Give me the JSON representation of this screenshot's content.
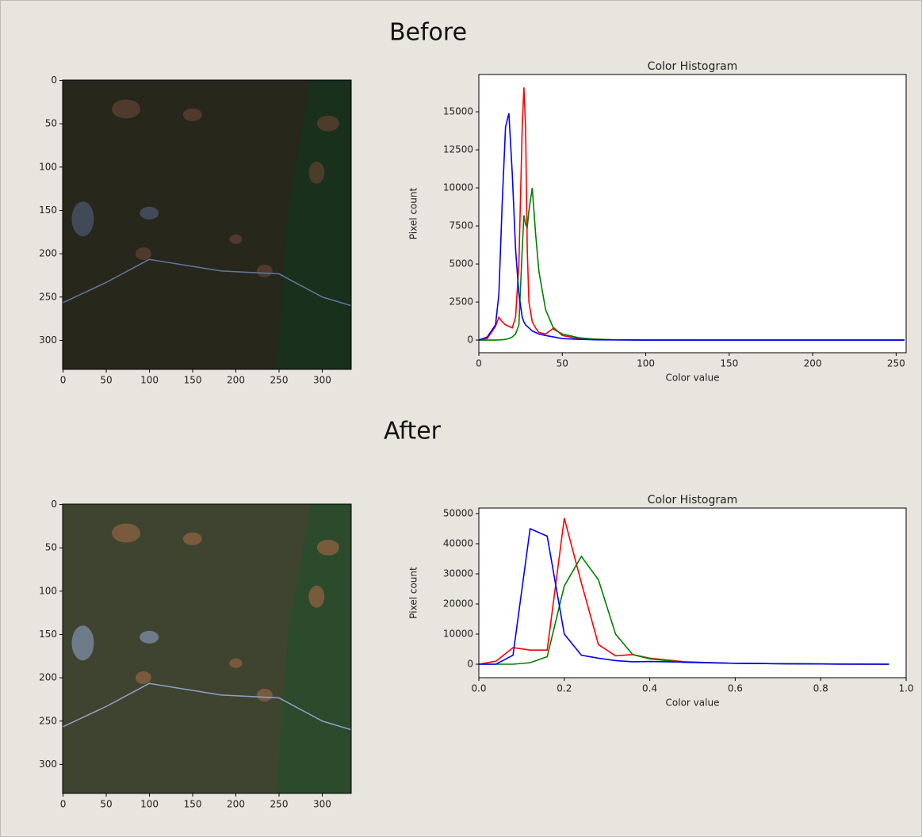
{
  "headings": [
    "Before",
    "After"
  ],
  "chart_data": [
    {
      "type": "image",
      "xlim": [
        -0.5,
        333.5
      ],
      "ylim": [
        333.5,
        -0.5
      ],
      "xticks": [
        0,
        50,
        100,
        150,
        200,
        250,
        300
      ],
      "yticks": [
        0,
        50,
        100,
        150,
        200,
        250,
        300
      ]
    },
    {
      "type": "line",
      "title": "Color Histogram",
      "x_label": "Color value",
      "y_label": "Pixel count",
      "x": [
        0,
        5,
        10,
        12,
        14,
        16,
        18,
        20,
        22,
        24,
        26,
        27,
        28,
        29,
        30,
        32,
        34,
        36,
        40,
        45,
        50,
        60,
        70,
        80,
        100,
        150,
        200,
        255
      ],
      "series": [
        {
          "color": "#ff0000",
          "values": [
            0,
            100,
            900,
            1500,
            1200,
            1000,
            900,
            800,
            1500,
            5000,
            14000,
            16600,
            14000,
            6000,
            2500,
            1200,
            800,
            500,
            400,
            800,
            300,
            100,
            50,
            20,
            0,
            0,
            0,
            0
          ]
        },
        {
          "color": "#008000",
          "values": [
            0,
            0,
            0,
            10,
            20,
            50,
            100,
            200,
            400,
            1000,
            6000,
            8200,
            7600,
            7400,
            8500,
            10000,
            7000,
            4500,
            2000,
            700,
            400,
            150,
            60,
            20,
            5,
            0,
            0,
            0
          ]
        },
        {
          "color": "#0000ff",
          "values": [
            0,
            200,
            1000,
            3000,
            9000,
            14000,
            14900,
            11000,
            6000,
            3000,
            1500,
            1200,
            1000,
            900,
            800,
            600,
            500,
            400,
            300,
            200,
            100,
            50,
            20,
            10,
            0,
            0,
            0,
            0
          ]
        }
      ],
      "xlim": [
        0,
        256
      ],
      "ylim": [
        -830,
        17450
      ],
      "xticks": [
        0,
        50,
        100,
        150,
        200,
        250
      ],
      "yticks": [
        0,
        2500,
        5000,
        7500,
        10000,
        12500,
        15000
      ]
    },
    {
      "type": "image",
      "xlim": [
        -0.5,
        333.5
      ],
      "ylim": [
        333.5,
        -0.5
      ],
      "xticks": [
        0,
        50,
        100,
        150,
        200,
        250,
        300
      ],
      "yticks": [
        0,
        50,
        100,
        150,
        200,
        250,
        300
      ]
    },
    {
      "type": "line",
      "title": "Color Histogram",
      "x_label": "Color value",
      "y_label": "Pixel count",
      "x": [
        0,
        0.04,
        0.08,
        0.12,
        0.16,
        0.2,
        0.24,
        0.28,
        0.32,
        0.36,
        0.4,
        0.48,
        0.6,
        0.72,
        0.84,
        0.96
      ],
      "series": [
        {
          "color": "#ff0000",
          "values": [
            0,
            1000,
            5500,
            4700,
            4700,
            48500,
            27000,
            6500,
            2800,
            3200,
            2000,
            800,
            300,
            150,
            50,
            0
          ]
        },
        {
          "color": "#008000",
          "values": [
            0,
            0,
            0,
            500,
            2500,
            26000,
            35800,
            28000,
            10000,
            3200,
            1800,
            600,
            300,
            150,
            50,
            0
          ]
        },
        {
          "color": "#0000ff",
          "values": [
            0,
            0,
            3000,
            45000,
            42500,
            10000,
            3000,
            2000,
            1200,
            800,
            900,
            700,
            300,
            150,
            50,
            0
          ]
        }
      ],
      "xlim": [
        0,
        1
      ],
      "ylim": [
        -4470,
        51840
      ],
      "xticks": [
        {
          "value": 0,
          "label": "0.0"
        },
        0.2,
        0.4,
        0.6,
        0.8,
        {
          "value": 1,
          "label": "1.0"
        }
      ],
      "yticks": [
        0,
        10000,
        20000,
        30000,
        40000,
        50000
      ]
    }
  ]
}
